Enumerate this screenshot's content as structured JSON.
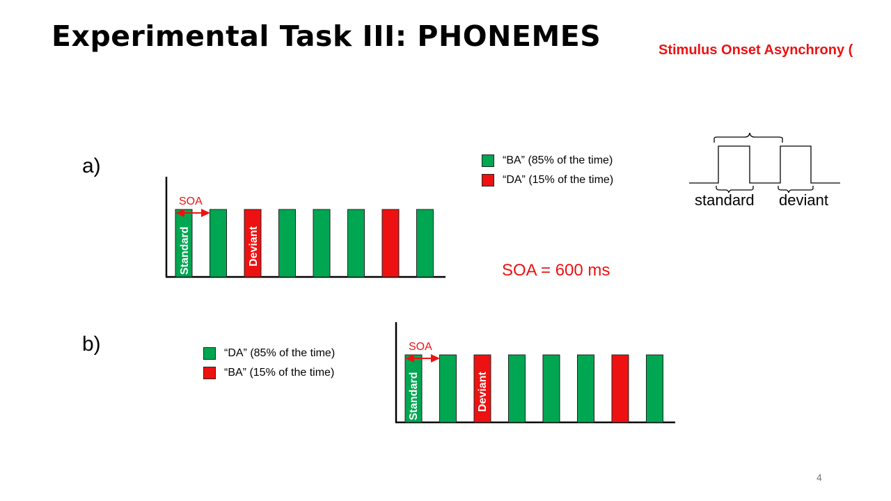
{
  "slide": {
    "title": "Experimental Task III: PHONEMES",
    "soa_heading": "Stimulus Onset Asynchrony (",
    "page_number": "4",
    "soa_value": "SOA = 600 ms"
  },
  "colors": {
    "standard": "#00a651",
    "deviant": "#ee1111",
    "annotation": "#ee1111"
  },
  "panel_a": {
    "label": "a)",
    "legend": [
      {
        "text": "“BA” (85% of the time)",
        "type": "standard"
      },
      {
        "text": "“DA” (15% of the time)",
        "type": "deviant"
      }
    ],
    "sequence": [
      "standard",
      "standard",
      "deviant",
      "standard",
      "standard",
      "standard",
      "deviant",
      "standard"
    ],
    "soa_label": "SOA",
    "standard_label": "Standard",
    "deviant_label": "Deviant"
  },
  "panel_b": {
    "label": "b)",
    "legend": [
      {
        "text": "“DA” (85% of the time)",
        "type": "standard"
      },
      {
        "text": "“BA” (15% of the time)",
        "type": "deviant"
      }
    ],
    "sequence": [
      "standard",
      "standard",
      "deviant",
      "standard",
      "standard",
      "standard",
      "deviant",
      "standard"
    ],
    "soa_label": "SOA",
    "standard_label": "Standard",
    "deviant_label": "Deviant"
  },
  "waveform": {
    "standard_label": "standard",
    "deviant_label": "deviant"
  }
}
